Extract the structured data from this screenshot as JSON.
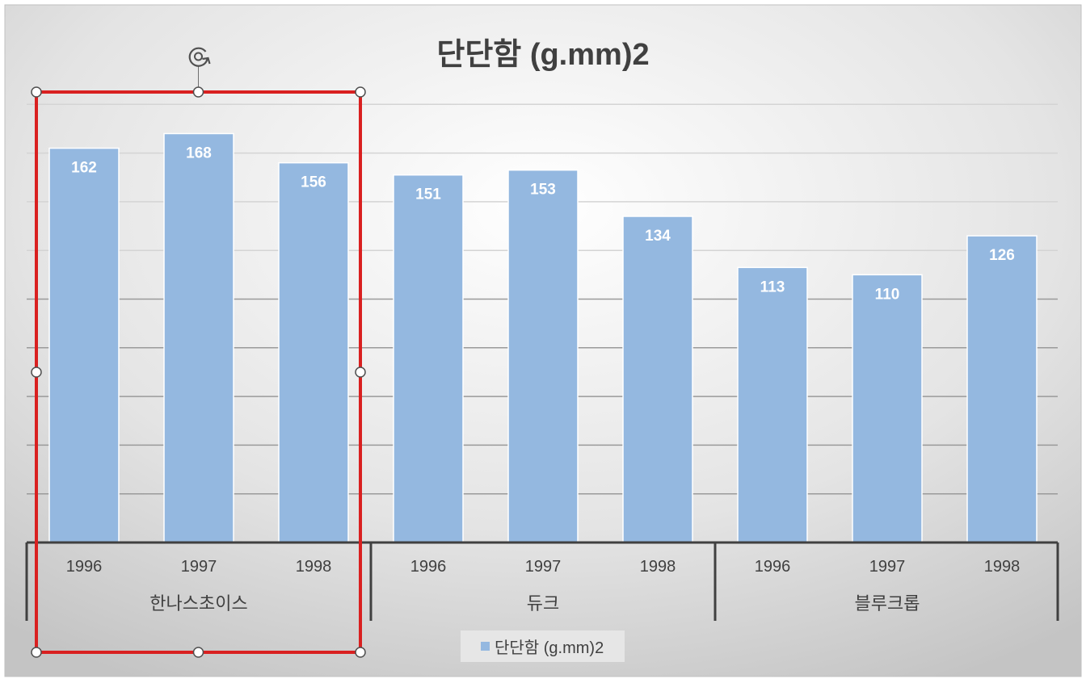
{
  "chart_data": {
    "type": "bar",
    "title": "단단함 (g.mm)2",
    "groups": [
      {
        "label": "한나스초이스",
        "categories": [
          "1996",
          "1997",
          "1998"
        ],
        "values": [
          162,
          168,
          156
        ]
      },
      {
        "label": "듀크",
        "categories": [
          "1996",
          "1997",
          "1998"
        ],
        "values": [
          151,
          153,
          134
        ]
      },
      {
        "label": "블루크롭",
        "categories": [
          "1996",
          "1997",
          "1998"
        ],
        "values": [
          113,
          110,
          126
        ]
      }
    ],
    "series": [
      {
        "name": "단단함 (g.mm)2"
      }
    ],
    "ylim": [
      0,
      180
    ],
    "grid": true,
    "y_axis_labels": false,
    "data_labels": true,
    "legend_position": "bottom",
    "bar_color": "#94b8e0",
    "selected_group": "한나스초이스",
    "selection_color": "#d92020"
  }
}
